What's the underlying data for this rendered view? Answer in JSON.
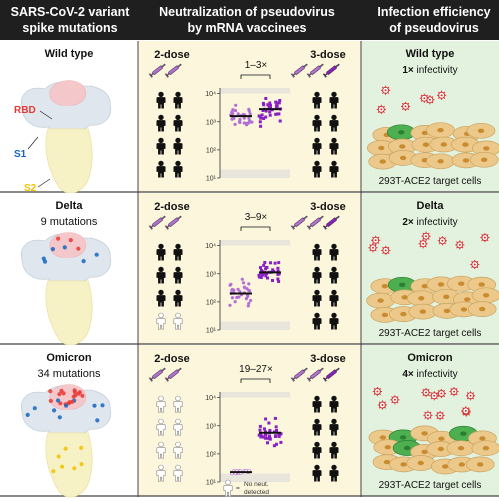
{
  "headers": {
    "spike": [
      "SARS-CoV-2 variant",
      "spike mutations"
    ],
    "neutralization": [
      "Neutralization of pseudovirus",
      "by mRNA vaccinees"
    ],
    "infection": [
      "Infection efficiency",
      "of pseudovirus"
    ]
  },
  "structure_labels": {
    "rbd": "RBD",
    "s1": "S1",
    "s2": "S2"
  },
  "colors": {
    "header_bg": "#1f1f1f",
    "spike_bg": "#ffffff",
    "neut_bg": "#fbf6dc",
    "inf_bg": "#e3f2de",
    "two_dose": "#b46fd6",
    "three_dose": "#8a1fc2",
    "rbd": "#e53935",
    "s1": "#1565c0",
    "s2": "#f2c200"
  },
  "dose_labels": {
    "two": "2-dose",
    "three": "3-dose"
  },
  "axis": {
    "ticks": [
      "10¹",
      "10²",
      "10³",
      "10⁴"
    ]
  },
  "legend": {
    "equals": "=",
    "text_line1": "No neut.",
    "text_line2": "detected"
  },
  "target_cells": "293T-ACE2 target cells",
  "rows": [
    {
      "variant": "Wild type",
      "mutations": "",
      "fold": "1–3×",
      "infectivity_factor": "1×",
      "infectivity_word": " infectivity",
      "two_dose_detected": 8,
      "three_dose_detected": 8,
      "two_dose_median": 3.2,
      "three_dose_median": 3.45
    },
    {
      "variant": "Delta",
      "mutations": "9 mutations",
      "fold": "3–9×",
      "infectivity_factor": "2×",
      "infectivity_word": " infectivity",
      "two_dose_detected": 6,
      "three_dose_detected": 8,
      "two_dose_median": 2.3,
      "three_dose_median": 3.05
    },
    {
      "variant": "Omicron",
      "mutations": "34 mutations",
      "fold": "19–27×",
      "infectivity_factor": "4×",
      "infectivity_word": " infectivity",
      "two_dose_detected": 0,
      "three_dose_detected": 8,
      "two_dose_median": 1.35,
      "three_dose_median": 2.75
    }
  ]
}
